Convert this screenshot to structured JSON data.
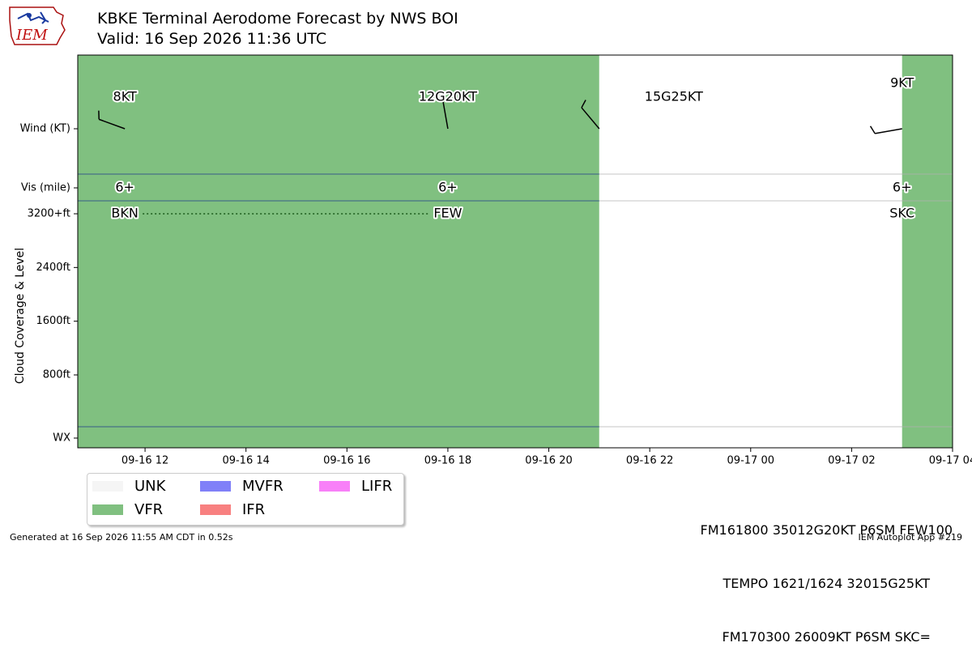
{
  "header": {
    "title_line1": "KBKE Terminal Aerodome Forecast by NWS BOI",
    "title_line2": "Valid: 16 Sep 2026 11:36 UTC",
    "logo_text": "IEM"
  },
  "footer": {
    "generated": "Generated at 16 Sep 2026 11:55 AM CDT in 0.52s",
    "app": "IEM Autoplot App #219"
  },
  "taf_text": [
    "FM161800 35012G20KT P6SM FEW100",
    "TEMPO 1621/1624 32015G25KT",
    "FM170300 26009KT P6SM SKC="
  ],
  "legend": [
    {
      "label": "UNK",
      "color": "#f5f5f5"
    },
    {
      "label": "VFR",
      "color": "#80c080"
    },
    {
      "label": "MVFR",
      "color": "#8080f8"
    },
    {
      "label": "IFR",
      "color": "#f88080"
    },
    {
      "label": "LIFR",
      "color": "#f880f8"
    }
  ],
  "chart_data": {
    "type": "timeline",
    "ylabel": "Cloud Coverage & Level",
    "x_range": [
      "09-16 10:40",
      "09-17 04:00"
    ],
    "x_ticks": [
      "09-16 12",
      "09-16 14",
      "09-16 16",
      "09-16 18",
      "09-16 20",
      "09-16 22",
      "09-17 00",
      "09-17 02",
      "09-17 04"
    ],
    "y_ticks": [
      "Wind (KT)",
      "Vis (mile)",
      "3200+ft",
      "2400ft",
      "1600ft",
      "800ft",
      "WX"
    ],
    "y_tick_ft": [
      3200,
      2400,
      1600,
      800
    ],
    "categories": [
      {
        "from": "09-16 10:40",
        "to": "09-16 21:00",
        "category": "VFR"
      },
      {
        "from": "09-16 21:00",
        "to": "09-17 03:00",
        "category": "UNK"
      },
      {
        "from": "09-17 03:00",
        "to": "09-17 04:00",
        "category": "VFR"
      }
    ],
    "forecasts": [
      {
        "time": "09-16 11:36",
        "wind_label": "8KT",
        "wind_dir_deg": 290,
        "vis": "6+",
        "sky": "BKN",
        "sky_ft": 3200
      },
      {
        "time": "09-16 18:00",
        "wind_label": "12G20KT",
        "wind_dir_deg": 350,
        "vis": "6+",
        "sky": "FEW",
        "sky_ft": 3200
      },
      {
        "time": "09-16 21:00",
        "wind_label": "15G25KT",
        "wind_dir_deg": 320
      },
      {
        "time": "09-17 03:00",
        "wind_label": "9KT",
        "wind_dir_deg": 260,
        "vis": "6+",
        "sky": "SKC",
        "sky_ft": 3200
      }
    ]
  }
}
